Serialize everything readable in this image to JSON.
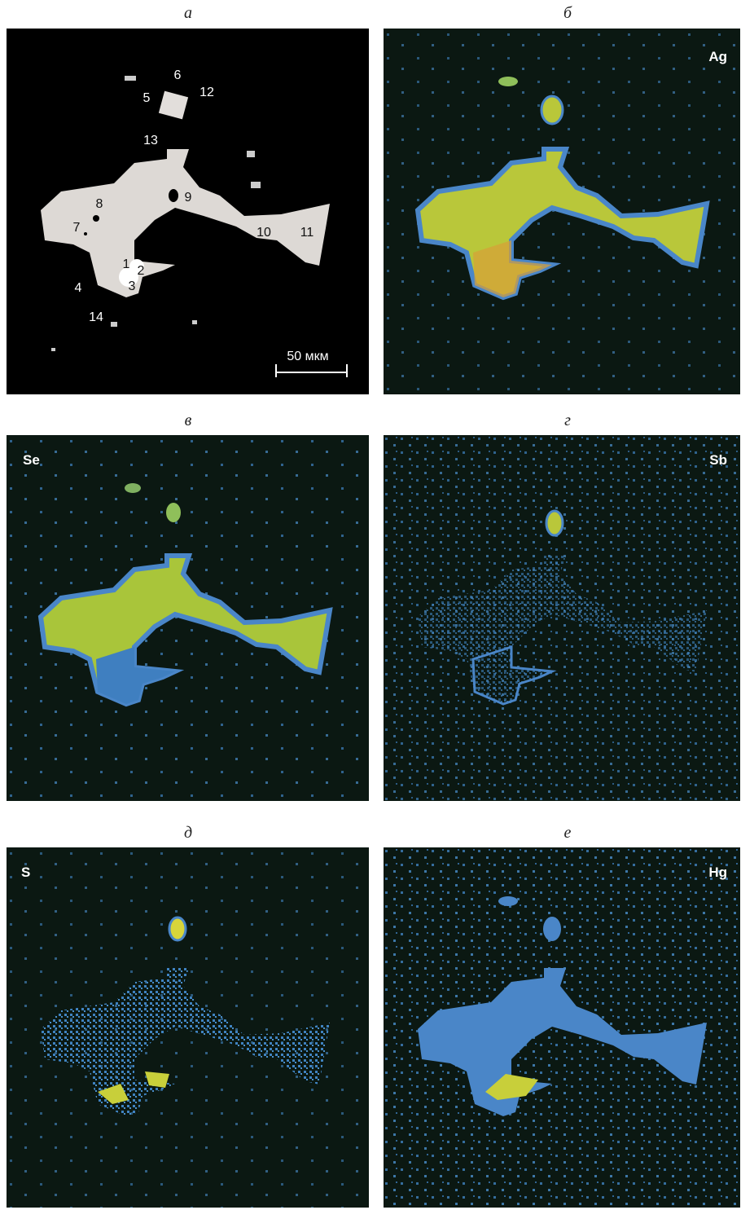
{
  "panels": [
    {
      "letter": "а"
    },
    {
      "letter": "б",
      "element": "Ag"
    },
    {
      "letter": "в",
      "element": "Se"
    },
    {
      "letter": "г",
      "element": "Sb"
    },
    {
      "letter": "д",
      "element": "S"
    },
    {
      "letter": "е",
      "element": "Hg"
    }
  ],
  "points": [
    "1",
    "2",
    "3",
    "4",
    "5",
    "6",
    "7",
    "8",
    "9",
    "10",
    "11",
    "12",
    "13",
    "14"
  ],
  "scale_bar": "50 мкм"
}
